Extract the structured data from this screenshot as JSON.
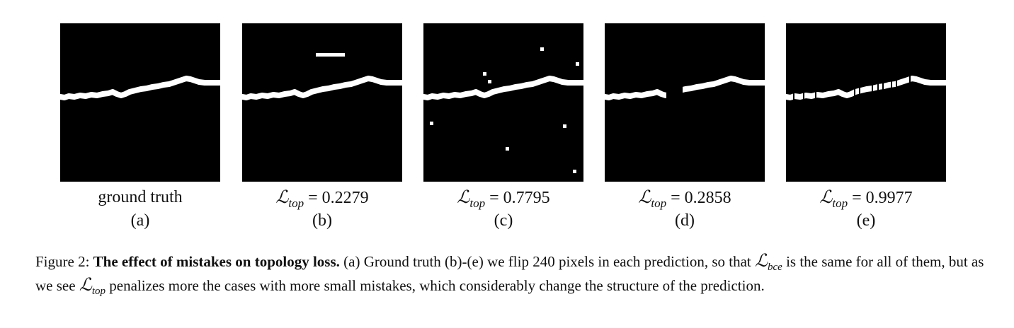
{
  "panels": [
    {
      "id": "a",
      "caption_text": "ground truth",
      "letter": "(a)"
    },
    {
      "id": "b",
      "loss_symbol": "ℒ",
      "loss_subscript": "top",
      "equals": "=",
      "loss_value": "0.2279",
      "letter": "(b)"
    },
    {
      "id": "c",
      "loss_symbol": "ℒ",
      "loss_subscript": "top",
      "equals": "=",
      "loss_value": "0.7795",
      "letter": "(c)"
    },
    {
      "id": "d",
      "loss_symbol": "ℒ",
      "loss_subscript": "top",
      "equals": "=",
      "loss_value": "0.2858",
      "letter": "(d)"
    },
    {
      "id": "e",
      "loss_symbol": "ℒ",
      "loss_subscript": "top",
      "equals": "=",
      "loss_value": "0.9977",
      "letter": "(e)"
    }
  ],
  "caption": {
    "prefix": "Figure 2: ",
    "title": "The effect of mistakes on topology loss.",
    "text_1": " (a) Ground truth (b)-(e) we flip 240 pixels in each prediction, so that ",
    "sym_bce": "ℒ",
    "sub_bce": "bce",
    "text_2": " is the same for all of them, but as we see ",
    "sym_top": "ℒ",
    "sub_top": "top",
    "text_3": " penalizes more the cases with more small mistakes, which considerably change the structure of the prediction."
  },
  "colors": {
    "background": "#000000",
    "foreground": "#ffffff"
  }
}
